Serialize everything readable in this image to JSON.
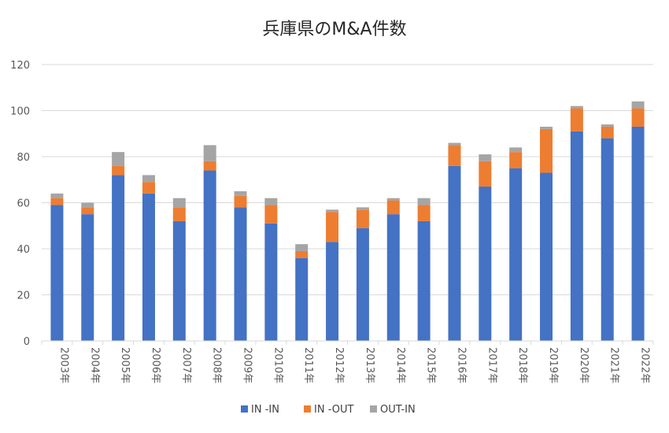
{
  "chart_data": {
    "type": "bar",
    "stacked": true,
    "title": "兵庫県のM&A件数",
    "xlabel": "",
    "ylabel": "",
    "ylim": [
      0,
      120
    ],
    "yticks": [
      0,
      20,
      40,
      60,
      80,
      100,
      120
    ],
    "grid": true,
    "legend_position": "bottom",
    "categories": [
      "2003年",
      "2004年",
      "2005年",
      "2006年",
      "2007年",
      "2008年",
      "2009年",
      "2010年",
      "2011年",
      "2012年",
      "2013年",
      "2014年",
      "2015年",
      "2016年",
      "2017年",
      "2018年",
      "2019年",
      "2020年",
      "2021年",
      "2022年"
    ],
    "series": [
      {
        "name": "IN -IN",
        "color": "#4472C4",
        "values": [
          59,
          55,
          72,
          64,
          52,
          74,
          58,
          51,
          36,
          43,
          49,
          55,
          52,
          76,
          67,
          75,
          73,
          91,
          88,
          93
        ]
      },
      {
        "name": "IN -OUT",
        "color": "#ED7D31",
        "values": [
          3,
          3,
          4,
          5,
          6,
          4,
          5,
          8,
          3,
          13,
          8,
          6,
          7,
          9,
          11,
          7,
          19,
          10,
          5,
          8
        ]
      },
      {
        "name": "OUT-IN",
        "color": "#A5A5A5",
        "values": [
          2,
          2,
          6,
          3,
          4,
          7,
          2,
          3,
          3,
          1,
          1,
          1,
          3,
          1,
          3,
          2,
          1,
          1,
          1,
          3
        ]
      }
    ]
  }
}
